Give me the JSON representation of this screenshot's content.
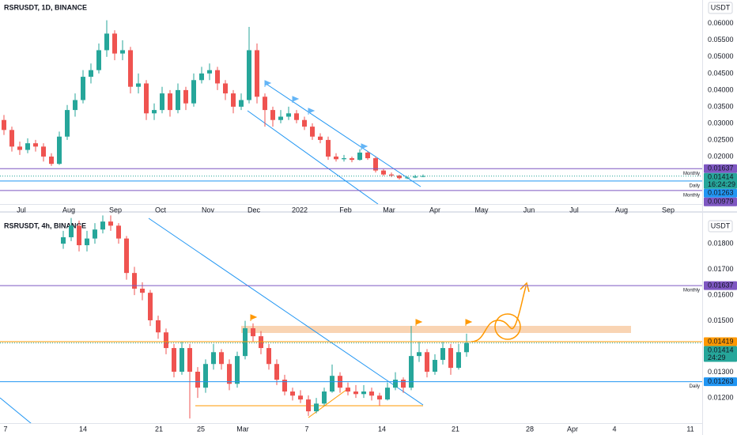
{
  "chart_data": [
    {
      "type": "candlestick",
      "title": "RSRUSDT, 1D, BINANCE",
      "currency": "USDT",
      "up_color": "#26a69a",
      "down_color": "#ef5350",
      "grid": false,
      "ylim": [
        0.00571,
        0.0671
      ],
      "yticks": [
        {
          "value": 0.02,
          "label": "0.02000"
        },
        {
          "value": 0.025,
          "label": "0.02500"
        },
        {
          "value": 0.03,
          "label": "0.03000"
        },
        {
          "value": 0.035,
          "label": "0.03500"
        },
        {
          "value": 0.04,
          "label": "0.04000"
        },
        {
          "value": 0.045,
          "label": "0.04500"
        },
        {
          "value": 0.05,
          "label": "0.05000"
        },
        {
          "value": 0.055,
          "label": "0.05500"
        },
        {
          "value": 0.06,
          "label": "0.06000"
        }
      ],
      "xlim": [
        -0.5,
        88.3
      ],
      "xticks": [
        {
          "value": 2.2,
          "label": "Jul"
        },
        {
          "value": 8.2,
          "label": "Aug"
        },
        {
          "value": 14.1,
          "label": "Sep"
        },
        {
          "value": 19.8,
          "label": "Oct"
        },
        {
          "value": 25.8,
          "label": "Nov"
        },
        {
          "value": 31.6,
          "label": "Dec"
        },
        {
          "value": 37.4,
          "label": "2022"
        },
        {
          "value": 43.2,
          "label": "Feb"
        },
        {
          "value": 48.7,
          "label": "Mar"
        },
        {
          "value": 54.5,
          "label": "Apr"
        },
        {
          "value": 60.4,
          "label": "May"
        },
        {
          "value": 66.4,
          "label": "Jun"
        },
        {
          "value": 72.1,
          "label": "Jul"
        },
        {
          "value": 78.1,
          "label": "Aug"
        },
        {
          "value": 84.0,
          "label": "Sep"
        }
      ],
      "levels": [
        {
          "value": 0.01637,
          "label": "0.01637",
          "name": "Monthly",
          "color": "#7e57c2"
        },
        {
          "value": 0.01263,
          "label": "0.01263",
          "name": "Daily",
          "color": "#2196f3"
        },
        {
          "value": 0.00979,
          "label": "0.00979",
          "name": "Monthly",
          "color": "#7e57c2"
        }
      ],
      "last": {
        "value": 0.01414,
        "label": "0.01414",
        "countdown": "16:24:29",
        "color": "#26a69a"
      },
      "candles": [
        [
          0.031,
          0.0325,
          0.0265,
          0.028
        ],
        [
          0.028,
          0.029,
          0.0215,
          0.023
        ],
        [
          0.023,
          0.0245,
          0.0205,
          0.022
        ],
        [
          0.022,
          0.0255,
          0.021,
          0.024
        ],
        [
          0.024,
          0.025,
          0.0215,
          0.023
        ],
        [
          0.023,
          0.024,
          0.0185,
          0.02
        ],
        [
          0.02,
          0.021,
          0.0172,
          0.0178
        ],
        [
          0.0178,
          0.0275,
          0.0175,
          0.026
        ],
        [
          0.026,
          0.0355,
          0.025,
          0.034
        ],
        [
          0.034,
          0.039,
          0.032,
          0.037
        ],
        [
          0.037,
          0.046,
          0.036,
          0.044
        ],
        [
          0.044,
          0.048,
          0.042,
          0.046
        ],
        [
          0.046,
          0.054,
          0.045,
          0.052
        ],
        [
          0.052,
          0.061,
          0.05,
          0.057
        ],
        [
          0.057,
          0.058,
          0.049,
          0.051
        ],
        [
          0.051,
          0.055,
          0.049,
          0.052
        ],
        [
          0.052,
          0.053,
          0.039,
          0.041
        ],
        [
          0.041,
          0.045,
          0.039,
          0.042
        ],
        [
          0.042,
          0.043,
          0.031,
          0.033
        ],
        [
          0.033,
          0.036,
          0.031,
          0.034
        ],
        [
          0.034,
          0.041,
          0.033,
          0.039
        ],
        [
          0.039,
          0.04,
          0.032,
          0.034
        ],
        [
          0.034,
          0.042,
          0.033,
          0.04
        ],
        [
          0.04,
          0.041,
          0.034,
          0.036
        ],
        [
          0.036,
          0.045,
          0.035,
          0.043
        ],
        [
          0.043,
          0.047,
          0.042,
          0.045
        ],
        [
          0.045,
          0.048,
          0.043,
          0.046
        ],
        [
          0.046,
          0.047,
          0.04,
          0.042
        ],
        [
          0.042,
          0.043,
          0.037,
          0.039
        ],
        [
          0.039,
          0.04,
          0.033,
          0.035
        ],
        [
          0.035,
          0.039,
          0.034,
          0.037
        ],
        [
          0.037,
          0.059,
          0.036,
          0.052
        ],
        [
          0.052,
          0.054,
          0.036,
          0.038
        ],
        [
          0.038,
          0.039,
          0.029,
          0.034
        ],
        [
          0.034,
          0.035,
          0.029,
          0.031
        ],
        [
          0.031,
          0.034,
          0.03,
          0.032
        ],
        [
          0.032,
          0.035,
          0.031,
          0.033
        ],
        [
          0.033,
          0.034,
          0.03,
          0.031
        ],
        [
          0.031,
          0.032,
          0.028,
          0.029
        ],
        [
          0.029,
          0.03,
          0.025,
          0.026
        ],
        [
          0.026,
          0.027,
          0.024,
          0.025
        ],
        [
          0.025,
          0.026,
          0.019,
          0.02
        ],
        [
          0.02,
          0.021,
          0.0185,
          0.0192
        ],
        [
          0.0192,
          0.0205,
          0.0185,
          0.0195
        ],
        [
          0.0195,
          0.02,
          0.0183,
          0.019
        ],
        [
          0.019,
          0.0222,
          0.0188,
          0.0212
        ],
        [
          0.0212,
          0.0215,
          0.019,
          0.0195
        ],
        [
          0.0195,
          0.02,
          0.0152,
          0.0158
        ],
        [
          0.0158,
          0.0162,
          0.0142,
          0.0146
        ],
        [
          0.0146,
          0.0152,
          0.0138,
          0.0143
        ],
        [
          0.0143,
          0.0145,
          0.0131,
          0.0135
        ],
        [
          0.0135,
          0.0141,
          0.0132,
          0.0137
        ],
        [
          0.0137,
          0.0145,
          0.0135,
          0.014
        ],
        [
          0.014,
          0.0146,
          0.0138,
          0.01414
        ]
      ]
    },
    {
      "type": "candlestick",
      "title": "RSRUSDT, 4h, BINANCE",
      "currency": "USDT",
      "up_color": "#26a69a",
      "down_color": "#ef5350",
      "grid": false,
      "ylim": [
        0.01102,
        0.01911
      ],
      "yticks": [
        {
          "value": 0.012,
          "label": "0.01200"
        },
        {
          "value": 0.013,
          "label": "0.01300"
        },
        {
          "value": 0.014,
          "label": "0.01400"
        },
        {
          "value": 0.015,
          "label": "0.01500"
        },
        {
          "value": 0.016,
          "label": "0.01600"
        },
        {
          "value": 0.017,
          "label": "0.01700"
        },
        {
          "value": 0.018,
          "label": "0.01800"
        }
      ],
      "xlim": [
        -8,
        80.8
      ],
      "xticks": [
        {
          "value": -7.3,
          "label": "7"
        },
        {
          "value": 2.5,
          "label": "14"
        },
        {
          "value": 12.1,
          "label": "21"
        },
        {
          "value": 17.4,
          "label": "25"
        },
        {
          "value": 22.7,
          "label": "Mar"
        },
        {
          "value": 30.8,
          "label": "7"
        },
        {
          "value": 40.3,
          "label": "14"
        },
        {
          "value": 49.6,
          "label": "21"
        },
        {
          "value": 59.0,
          "label": "28"
        },
        {
          "value": 64.4,
          "label": "Apr"
        },
        {
          "value": 69.7,
          "label": "4"
        },
        {
          "value": 79.3,
          "label": "11"
        }
      ],
      "levels": [
        {
          "value": 0.01637,
          "label": "0.01637",
          "name": "Monthly",
          "color": "#7e57c2"
        },
        {
          "value": 0.01419,
          "label": "0.01419",
          "color": "#ff9800"
        },
        {
          "value": 0.01263,
          "label": "0.01263",
          "name": "Daily",
          "color": "#2196f3"
        }
      ],
      "last": {
        "value": 0.01414,
        "label": "0.01414",
        "countdown": "24:29",
        "color": "#26a69a"
      },
      "candles": [
        [
          0.018,
          0.0185,
          0.0178,
          0.01825
        ],
        [
          0.01825,
          0.019,
          0.0181,
          0.0187
        ],
        [
          0.0187,
          0.0189,
          0.0177,
          0.01794
        ],
        [
          0.01794,
          0.0185,
          0.0177,
          0.0182
        ],
        [
          0.0182,
          0.0188,
          0.018,
          0.01855
        ],
        [
          0.01855,
          0.0191,
          0.0184,
          0.01886
        ],
        [
          0.01886,
          0.0191,
          0.0185,
          0.0187
        ],
        [
          0.0187,
          0.0188,
          0.018,
          0.0182
        ],
        [
          0.0182,
          0.0183,
          0.0166,
          0.01686
        ],
        [
          0.01686,
          0.0171,
          0.016,
          0.01625
        ],
        [
          0.01625,
          0.0165,
          0.0158,
          0.01609
        ],
        [
          0.01609,
          0.0162,
          0.0148,
          0.01502
        ],
        [
          0.01502,
          0.0152,
          0.0143,
          0.01455
        ],
        [
          0.01455,
          0.0147,
          0.0137,
          0.01394
        ],
        [
          0.01394,
          0.0141,
          0.0128,
          0.01302
        ],
        [
          0.01302,
          0.0142,
          0.0129,
          0.01394
        ],
        [
          0.01394,
          0.0141,
          0.0112,
          0.01302
        ],
        [
          0.01302,
          0.0132,
          0.012,
          0.0124
        ],
        [
          0.0124,
          0.0135,
          0.0122,
          0.01332
        ],
        [
          0.01332,
          0.0141,
          0.0131,
          0.01378
        ],
        [
          0.01378,
          0.0139,
          0.0131,
          0.01332
        ],
        [
          0.01332,
          0.0135,
          0.0123,
          0.01255
        ],
        [
          0.01255,
          0.0138,
          0.0124,
          0.01363
        ],
        [
          0.01363,
          0.015,
          0.0135,
          0.01471
        ],
        [
          0.01471,
          0.0149,
          0.0142,
          0.0144
        ],
        [
          0.0144,
          0.0146,
          0.0137,
          0.01394
        ],
        [
          0.01394,
          0.0141,
          0.0131,
          0.01332
        ],
        [
          0.01332,
          0.0135,
          0.0125,
          0.01271
        ],
        [
          0.01271,
          0.0129,
          0.0121,
          0.01225
        ],
        [
          0.01225,
          0.0124,
          0.0119,
          0.01209
        ],
        [
          0.01209,
          0.0123,
          0.0118,
          0.01194
        ],
        [
          0.01194,
          0.0121,
          0.0113,
          0.01148
        ],
        [
          0.01148,
          0.012,
          0.0114,
          0.01178
        ],
        [
          0.01178,
          0.0124,
          0.0117,
          0.01225
        ],
        [
          0.01225,
          0.0133,
          0.0122,
          0.01286
        ],
        [
          0.01286,
          0.013,
          0.0122,
          0.0124
        ],
        [
          0.0124,
          0.0126,
          0.0121,
          0.01225
        ],
        [
          0.01225,
          0.0125,
          0.012,
          0.01215
        ],
        [
          0.01215,
          0.0125,
          0.012,
          0.01225
        ],
        [
          0.01225,
          0.0124,
          0.0119,
          0.01209
        ],
        [
          0.01209,
          0.0122,
          0.0117,
          0.01194
        ],
        [
          0.01194,
          0.0126,
          0.0119,
          0.0124
        ],
        [
          0.0124,
          0.013,
          0.0123,
          0.01271
        ],
        [
          0.01271,
          0.0128,
          0.0122,
          0.0124
        ],
        [
          0.0124,
          0.0148,
          0.0123,
          0.01363
        ],
        [
          0.01363,
          0.0142,
          0.0134,
          0.01378
        ],
        [
          0.01378,
          0.0139,
          0.0128,
          0.01302
        ],
        [
          0.01302,
          0.0137,
          0.0129,
          0.01348
        ],
        [
          0.01348,
          0.0142,
          0.0133,
          0.01394
        ],
        [
          0.01394,
          0.0141,
          0.0129,
          0.01317
        ],
        [
          0.01317,
          0.0141,
          0.0131,
          0.01378
        ],
        [
          0.01378,
          0.0145,
          0.0136,
          0.01414
        ]
      ]
    }
  ]
}
